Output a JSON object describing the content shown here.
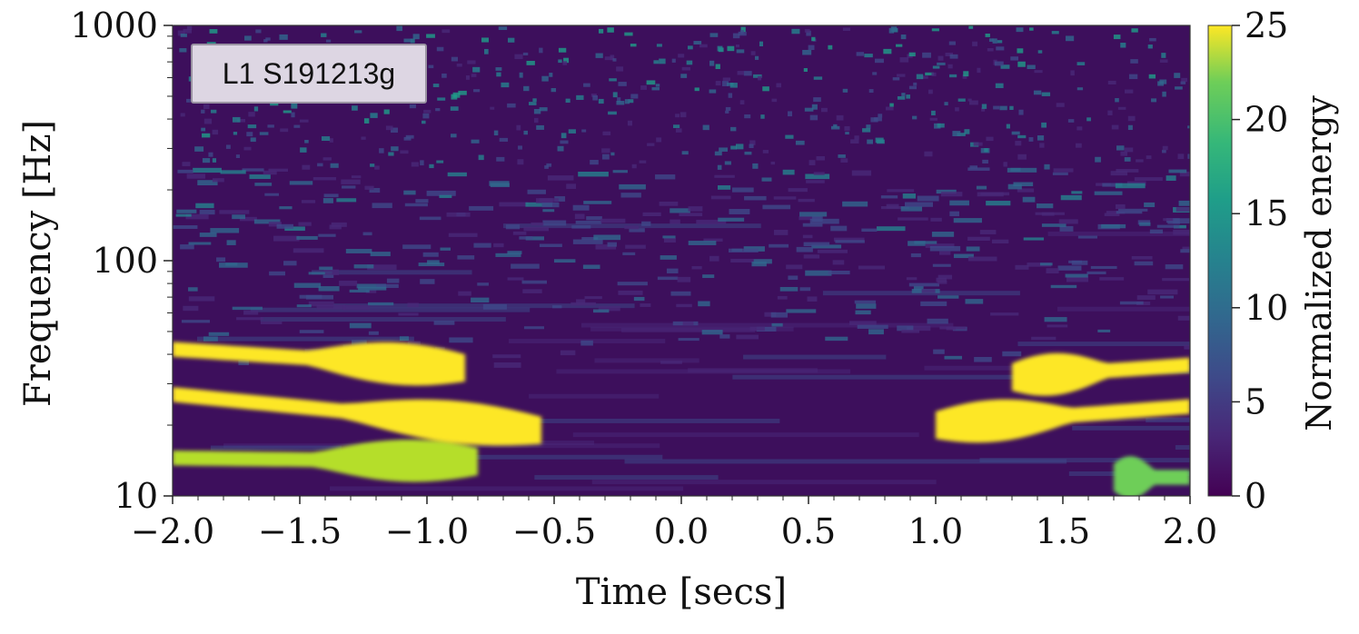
{
  "chart_data": {
    "type": "heatmap",
    "title": "",
    "annotation": "L1 S191213g",
    "xlabel": "Time [secs]",
    "ylabel": "Frequency [Hz]",
    "xlim": [
      -2.0,
      2.0
    ],
    "ylim": [
      10,
      1000
    ],
    "yscale": "log",
    "xticks": [
      "−2.0",
      "−1.5",
      "−1.0",
      "−0.5",
      "0.0",
      "0.5",
      "1.0",
      "1.5",
      "2.0"
    ],
    "yticks": [
      "10",
      "100",
      "1000"
    ],
    "colorbar": {
      "label": "Normalized energy",
      "range": [
        0,
        25
      ],
      "ticks": [
        "0",
        "5",
        "10",
        "15",
        "20",
        "25"
      ],
      "colormap": "viridis"
    },
    "bright_features": [
      {
        "t_start": -2.0,
        "t_end": -0.85,
        "f_start": 42,
        "f_end": 35,
        "energy": 25
      },
      {
        "t_start": -2.0,
        "t_end": -0.55,
        "f_start": 27,
        "f_end": 19,
        "energy": 25
      },
      {
        "t_start": -2.0,
        "t_end": -0.8,
        "f_start": 14.5,
        "f_end": 14,
        "energy": 22
      },
      {
        "t_start": 1.0,
        "t_end": 2.0,
        "f_start": 20,
        "f_end": 24,
        "energy": 25
      },
      {
        "t_start": 1.3,
        "t_end": 2.0,
        "f_start": 32,
        "f_end": 36,
        "energy": 25
      },
      {
        "t_start": 1.7,
        "t_end": 2.0,
        "f_start": 12,
        "f_end": 12,
        "energy": 18
      }
    ]
  },
  "colors": {
    "background": "#440154",
    "accent": "#fde725"
  }
}
